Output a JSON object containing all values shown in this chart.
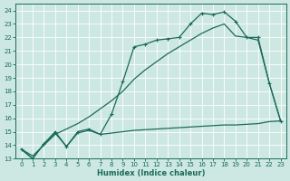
{
  "xlabel": "Humidex (Indice chaleur)",
  "bg_color": "#cde8e2",
  "grid_color": "#b8d8d0",
  "line_color": "#1a6b5a",
  "xlim": [
    -0.5,
    23.5
  ],
  "ylim": [
    13,
    24.5
  ],
  "yticks": [
    13,
    14,
    15,
    16,
    17,
    18,
    19,
    20,
    21,
    22,
    23,
    24
  ],
  "xticks": [
    0,
    1,
    2,
    3,
    4,
    5,
    6,
    7,
    8,
    9,
    10,
    11,
    12,
    13,
    14,
    15,
    16,
    17,
    18,
    19,
    20,
    21,
    22,
    23
  ],
  "line_jagged_x": [
    0,
    1,
    2,
    3,
    4,
    5,
    6,
    7,
    8,
    9,
    10,
    11,
    12,
    13,
    14,
    15,
    16,
    17,
    18,
    19,
    20,
    21,
    22,
    23
  ],
  "line_jagged_y": [
    13.7,
    13.0,
    14.1,
    15.0,
    13.9,
    15.0,
    15.2,
    14.8,
    16.3,
    18.7,
    21.3,
    21.5,
    21.8,
    21.9,
    22.0,
    23.0,
    23.8,
    23.7,
    23.9,
    23.2,
    22.0,
    22.0,
    18.6,
    15.8
  ],
  "line_smooth_x": [
    0,
    1,
    2,
    3,
    4,
    5,
    6,
    7,
    8,
    9,
    10,
    11,
    12,
    13,
    14,
    15,
    16,
    17,
    18,
    19,
    20,
    21,
    22,
    23
  ],
  "line_smooth_y": [
    13.7,
    13.2,
    14.0,
    14.8,
    15.2,
    15.6,
    16.1,
    16.7,
    17.3,
    18.0,
    18.9,
    19.6,
    20.2,
    20.8,
    21.3,
    21.8,
    22.3,
    22.7,
    23.0,
    22.1,
    22.0,
    21.8,
    18.6,
    15.8
  ],
  "line_flat_x": [
    0,
    1,
    2,
    3,
    4,
    5,
    6,
    7,
    8,
    9,
    10,
    11,
    12,
    13,
    14,
    15,
    16,
    17,
    18,
    19,
    20,
    21,
    22,
    23
  ],
  "line_flat_y": [
    13.7,
    13.0,
    14.1,
    14.9,
    13.9,
    14.9,
    15.1,
    14.8,
    14.9,
    15.0,
    15.1,
    15.15,
    15.2,
    15.25,
    15.3,
    15.35,
    15.4,
    15.45,
    15.5,
    15.5,
    15.55,
    15.6,
    15.75,
    15.8
  ]
}
